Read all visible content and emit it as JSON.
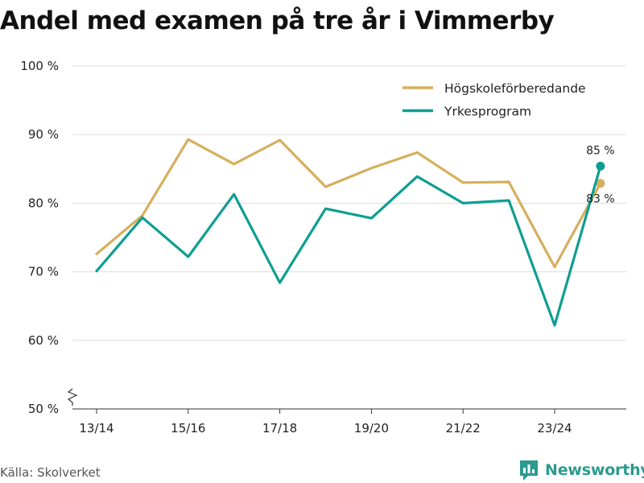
{
  "header": {
    "title": "Andel med examen på tre år i Vimmerby"
  },
  "footer": {
    "source": "Källa: Skolverket",
    "brand": "Newsworthy"
  },
  "colors": {
    "series_1": "#d6af5e",
    "series_2": "#0e9e92",
    "grid": "#dddddd",
    "brand": "#2c9a90"
  },
  "icons": {
    "brand_logo": "bar-chart-icon",
    "axis_break": "axis-break-icon"
  },
  "chart_data": {
    "type": "line",
    "title": "Andel med examen på tre år i Vimmerby",
    "xlabel": "",
    "ylabel": "",
    "x": [
      "13/14",
      "14/15",
      "15/16",
      "16/17",
      "17/18",
      "18/19",
      "19/20",
      "20/21",
      "21/22",
      "22/23",
      "23/24",
      "24/25"
    ],
    "xticks": [
      "13/14",
      "15/16",
      "17/18",
      "19/20",
      "21/22",
      "23/24"
    ],
    "ylim": [
      50,
      100
    ],
    "yticks": [
      50,
      60,
      70,
      80,
      90,
      100
    ],
    "ytick_labels": [
      "50 %",
      "60 %",
      "70 %",
      "80 %",
      "90 %",
      "100 %"
    ],
    "grid": true,
    "legend_position": "top-right",
    "series": [
      {
        "name": "Högskoleförberedande",
        "color": "#d6af5e",
        "values": [
          72.6,
          78.2,
          89.3,
          85.7,
          89.2,
          82.4,
          85.1,
          87.4,
          83.0,
          83.1,
          70.7,
          82.9
        ],
        "end_label": "83 %"
      },
      {
        "name": "Yrkesprogram",
        "color": "#0e9e92",
        "values": [
          70.1,
          77.9,
          72.2,
          81.3,
          68.4,
          79.2,
          77.8,
          83.9,
          80.0,
          80.4,
          62.2,
          85.4
        ],
        "end_label": "85 %"
      }
    ]
  }
}
